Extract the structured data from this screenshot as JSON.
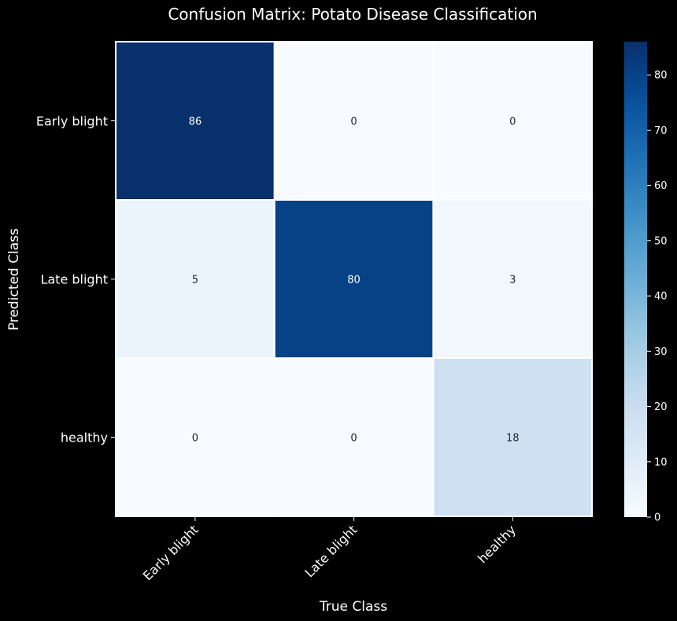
{
  "chart_data": {
    "type": "heatmap",
    "title": "Confusion Matrix: Potato Disease Classification",
    "xlabel": "True Class",
    "ylabel": "Predicted Class",
    "row_labels": [
      "Early blight",
      "Late blight",
      "healthy"
    ],
    "col_labels": [
      "Early blight",
      "Late blight",
      "healthy"
    ],
    "values": [
      [
        86,
        0,
        0
      ],
      [
        5,
        80,
        3
      ],
      [
        0,
        0,
        18
      ]
    ],
    "colorbar": {
      "colormap": "Blues",
      "vmin": 0,
      "vmax": 86,
      "ticks": [
        0,
        10,
        20,
        30,
        40,
        50,
        60,
        70,
        80
      ]
    },
    "annotations": true,
    "grid": false,
    "cell_separator_color": "#ffffff",
    "background_color": "#000000",
    "text_color": "#ffffff"
  }
}
